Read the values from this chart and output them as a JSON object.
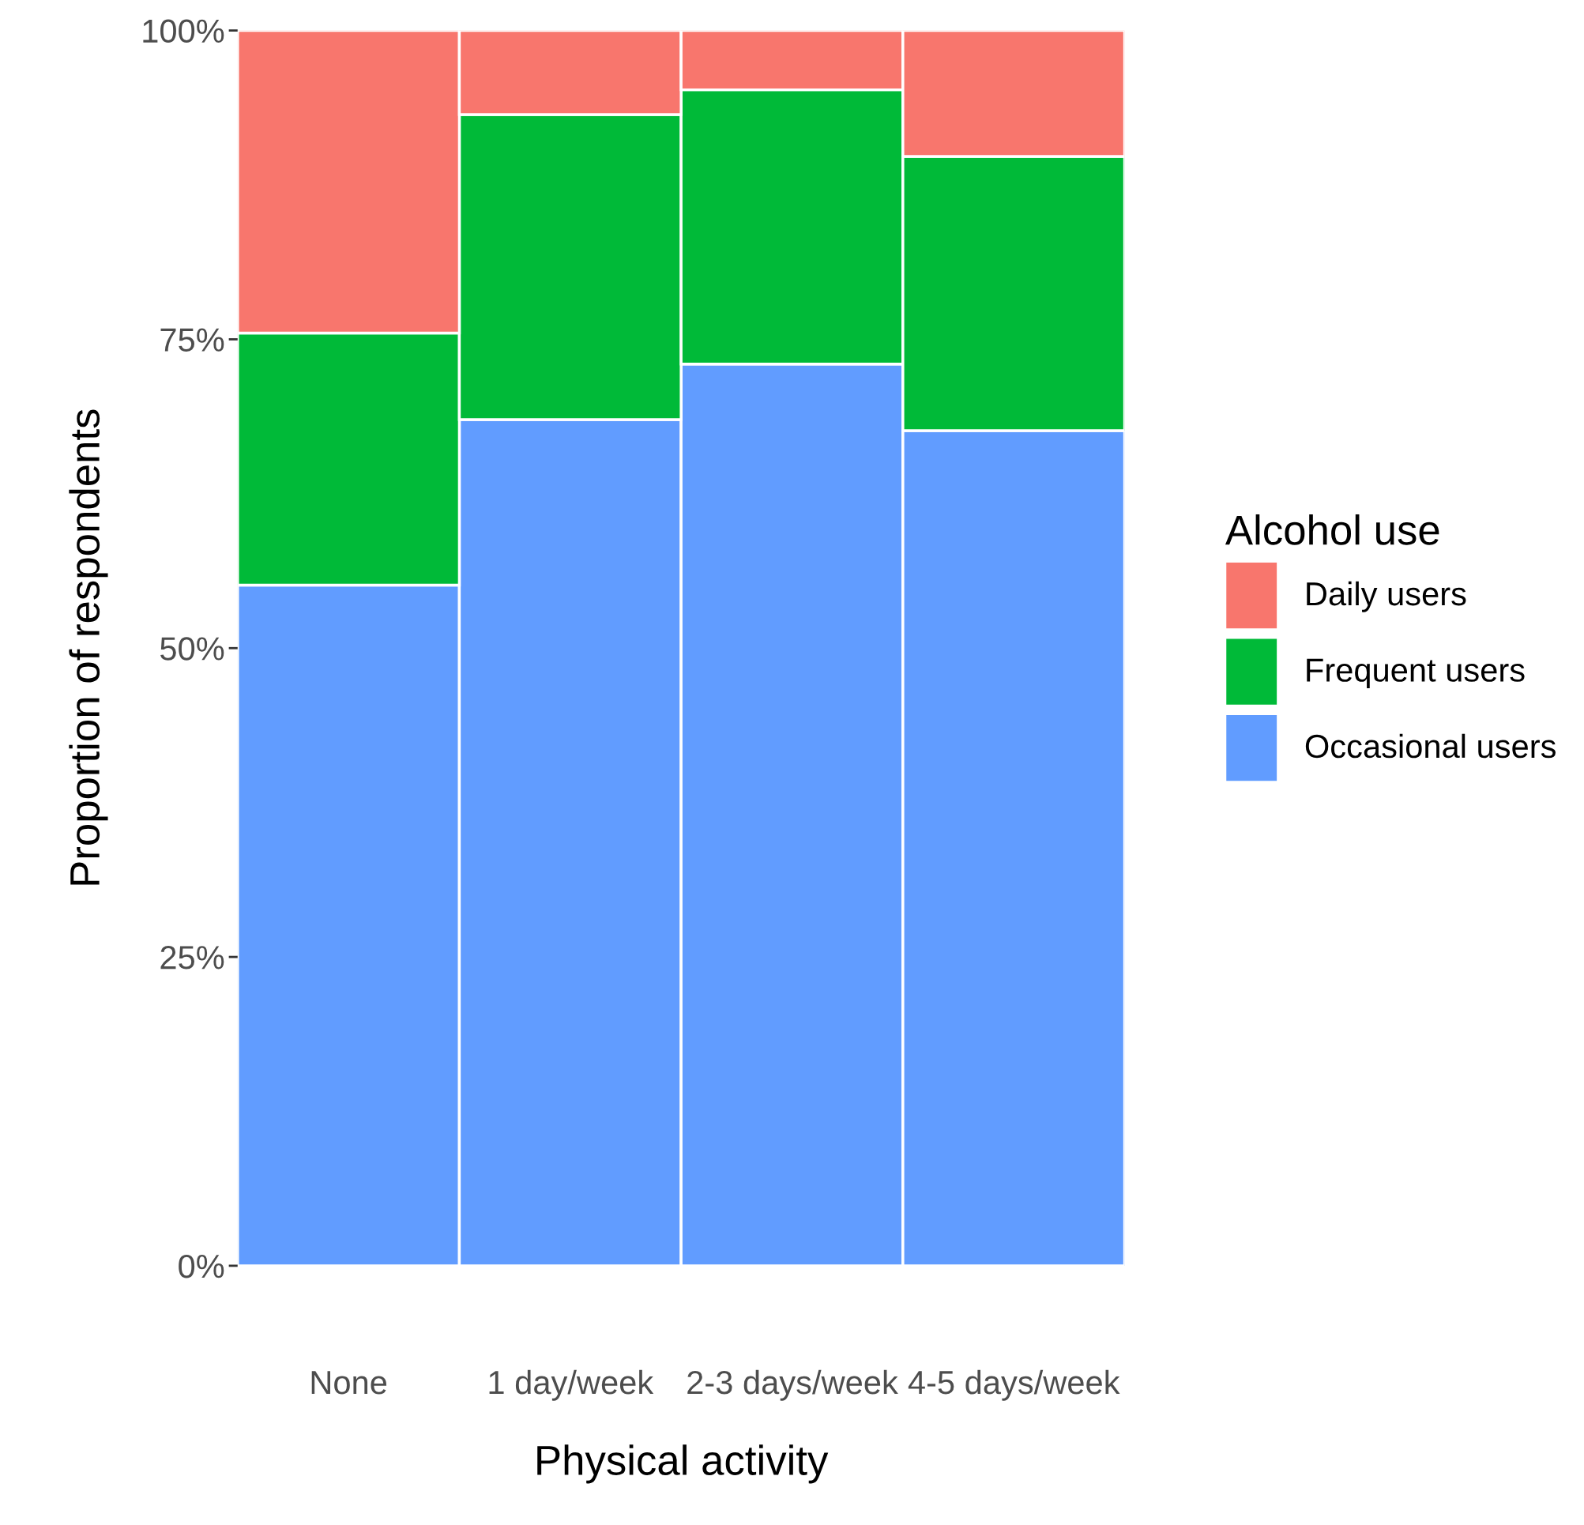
{
  "chart_data": {
    "type": "bar",
    "stacked": true,
    "xlabel": "Physical activity",
    "ylabel": "Proportion of respondents",
    "legend_title": "Alcohol use",
    "legend": "right",
    "categories": [
      "None",
      "1 day/week",
      "2-3 days/week",
      "4-5 days/week"
    ],
    "series": [
      {
        "name": "Occasional users",
        "color": "#619cff",
        "values": [
          55.1,
          68.5,
          73.0,
          67.6
        ]
      },
      {
        "name": "Frequent users",
        "color": "#00ba38",
        "values": [
          20.4,
          24.7,
          22.2,
          22.2
        ]
      },
      {
        "name": "Daily users",
        "color": "#f8766d",
        "values": [
          24.5,
          6.8,
          4.8,
          10.2
        ]
      }
    ],
    "ylim": [
      0,
      100
    ],
    "yticks": [
      {
        "value": 0,
        "label": "0%"
      },
      {
        "value": 25,
        "label": "25%"
      },
      {
        "value": 50,
        "label": "50%"
      },
      {
        "value": 75,
        "label": "75%"
      },
      {
        "value": 100,
        "label": "100%"
      }
    ],
    "grid": false
  }
}
